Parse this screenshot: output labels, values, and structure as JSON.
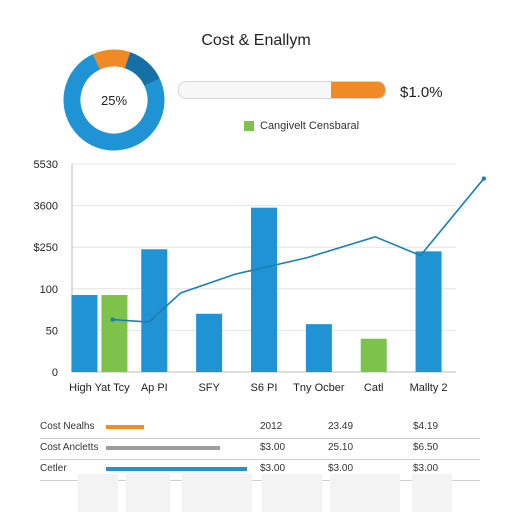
{
  "chart_data": [
    {
      "type": "pie",
      "center_label": "25%",
      "slices": [
        {
          "value": 75,
          "color": "#1f93d3"
        },
        {
          "value": 12,
          "color": "#f08a24"
        },
        {
          "value": 13,
          "color": "#1570a6"
        }
      ]
    },
    {
      "type": "bar",
      "title": "Cost & Enallym",
      "legend": [
        {
          "name": "Cangivelt Censbaral",
          "color": "#7dc24b"
        }
      ],
      "y_tick_labels": [
        "0",
        "50",
        "100",
        "$250",
        "3600",
        "5530"
      ],
      "ylim": [
        0,
        5
      ],
      "categories": [
        "High Yat Tcy",
        "Ap PI",
        "SFY",
        "S6 PI",
        "Tny Ocber",
        "Catl",
        "Mallty 2"
      ],
      "series": [
        {
          "kind": "bar",
          "bars": [
            {
              "category": "High Yat Tcy",
              "value": 1.85,
              "color": "#1f93d3"
            },
            {
              "category": "High Yat Tcy",
              "value": 1.85,
              "color": "#7dc24b"
            },
            {
              "category": "Ap PI",
              "value": 2.95,
              "color": "#1f93d3"
            },
            {
              "category": "SFY",
              "value": 1.4,
              "color": "#1f93d3"
            },
            {
              "category": "S6 PI",
              "value": 3.95,
              "color": "#1f93d3"
            },
            {
              "category": "Tny Ocber",
              "value": 1.15,
              "color": "#1f93d3"
            },
            {
              "category": "Catl",
              "value": 0.8,
              "color": "#7dc24b"
            },
            {
              "category": "Mallty 2",
              "value": 2.9,
              "color": "#1f93d3"
            }
          ]
        },
        {
          "kind": "line",
          "color": "#1a7fb5",
          "points": [
            {
              "x": 0.45,
              "y": 1.26
            },
            {
              "x": 0.85,
              "y": 1.2
            },
            {
              "x": 1.2,
              "y": 1.9
            },
            {
              "x": 1.8,
              "y": 2.35
            },
            {
              "x": 2.6,
              "y": 2.75
            },
            {
              "x": 3.35,
              "y": 3.25
            },
            {
              "x": 3.85,
              "y": 2.8
            },
            {
              "x": 4.55,
              "y": 4.65
            }
          ]
        }
      ],
      "grid": true
    }
  ],
  "summary": {
    "progress_percent": 26,
    "progress_value": "$1.0%",
    "progress_color": "#f08a24"
  },
  "table": {
    "rows": [
      {
        "label": "Cost Nealhs",
        "bar_color": "#f08a24",
        "bar_width": 0.2,
        "c1": "2012",
        "c2": "23.49",
        "c3": "$4.19"
      },
      {
        "label": "Cost Ancletts",
        "bar_color": "#9e9e9e",
        "bar_width": 0.6,
        "c1": "$3.00",
        "c2": "25.10",
        "c3": "$6.50"
      },
      {
        "label": "Cetler",
        "bar_color": "#1f93d3",
        "bar_width": 0.74,
        "c1": "$3.00",
        "c2": "$3.00",
        "c3": "$3.00"
      }
    ]
  }
}
